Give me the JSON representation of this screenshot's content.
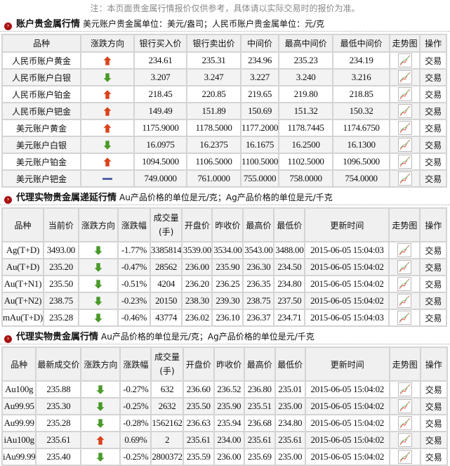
{
  "note": "注：本页面贵金属行情报价仅供参考，具体请以实际交易时的报价为准。",
  "colors": {
    "up": "#d9441c",
    "down": "#4a9a2a",
    "flat": "#5566aa",
    "accent": "#a11a1a"
  },
  "sections": [
    {
      "title": "账户贵金属行情",
      "unit": "美元账户贵金属单位：美元/盎司；人民币账户贵金属单位：元/克",
      "headers": [
        "品种",
        "涨跌方向",
        "银行买入价",
        "银行卖出价",
        "中间价",
        "最高中间价",
        "最低中间价",
        "走势图",
        "操作"
      ],
      "rows": [
        {
          "name": "人民币账户黄金",
          "dir": "up",
          "vals": [
            "234.61",
            "235.31",
            "234.96",
            "235.23",
            "234.19"
          ],
          "action": "交易"
        },
        {
          "name": "人民币账户白银",
          "dir": "down",
          "vals": [
            "3.207",
            "3.247",
            "3.227",
            "3.240",
            "3.216"
          ],
          "action": "交易"
        },
        {
          "name": "人民币账户铂金",
          "dir": "up",
          "vals": [
            "218.45",
            "220.85",
            "219.65",
            "219.80",
            "218.85"
          ],
          "action": "交易"
        },
        {
          "name": "人民币账户钯金",
          "dir": "up",
          "vals": [
            "149.49",
            "151.89",
            "150.69",
            "151.32",
            "150.32"
          ],
          "action": "交易"
        },
        {
          "name": "美元账户黄金",
          "dir": "up",
          "vals": [
            "1175.9000",
            "1178.5000",
            "1177.2000",
            "1178.7445",
            "1174.6750"
          ],
          "action": "交易"
        },
        {
          "name": "美元账户白银",
          "dir": "down",
          "vals": [
            "16.0975",
            "16.2375",
            "16.1675",
            "16.2500",
            "16.1300"
          ],
          "action": "交易"
        },
        {
          "name": "美元账户铂金",
          "dir": "up",
          "vals": [
            "1094.5000",
            "1106.5000",
            "1100.5000",
            "1102.5000",
            "1096.5000"
          ],
          "action": "交易"
        },
        {
          "name": "美元账户钯金",
          "dir": "flat",
          "vals": [
            "749.0000",
            "761.0000",
            "755.0000",
            "758.0000",
            "754.0000"
          ],
          "action": "交易"
        }
      ]
    },
    {
      "title": "代理实物贵金属递延行情",
      "unit": "Au产品价格的单位是元/克；Ag产品价格的单位是元/千克",
      "headers": [
        "品种",
        "当前价",
        "涨跌方向",
        "涨跌幅",
        "成交量(手)",
        "开盘价",
        "昨收价",
        "最高价",
        "最低价",
        "更新时间",
        "走势图",
        "操作"
      ],
      "rows": [
        {
          "name": "Ag(T+D)",
          "price": "3493.00",
          "dir": "down",
          "vals": [
            "-1.77%",
            "3385814",
            "3539.00",
            "3534.00",
            "3543.00",
            "3488.00",
            "2015-06-05 15:04:03"
          ],
          "action": "交易"
        },
        {
          "name": "Au(T+D)",
          "price": "235.20",
          "dir": "down",
          "vals": [
            "-0.47%",
            "28562",
            "236.00",
            "235.90",
            "236.30",
            "234.50",
            "2015-06-05 15:04:02"
          ],
          "action": "交易"
        },
        {
          "name": "Au(T+N1)",
          "price": "235.50",
          "dir": "down",
          "vals": [
            "-0.51%",
            "4204",
            "236.20",
            "236.25",
            "236.35",
            "234.80",
            "2015-06-05 15:04:02"
          ],
          "action": "交易"
        },
        {
          "name": "Au(T+N2)",
          "price": "238.75",
          "dir": "down",
          "vals": [
            "-0.23%",
            "20150",
            "238.30",
            "239.30",
            "238.75",
            "237.50",
            "2015-06-05 15:04:02"
          ],
          "action": "交易"
        },
        {
          "name": "mAu(T+D)",
          "price": "235.28",
          "dir": "down",
          "vals": [
            "-0.46%",
            "43774",
            "236.02",
            "236.10",
            "236.37",
            "234.71",
            "2015-06-05 15:04:03"
          ],
          "action": "交易"
        }
      ]
    },
    {
      "title": "代理实物贵金属行情",
      "unit": "Au产品价格的单位是元/克；Ag产品价格的单位是元/千克",
      "headers": [
        "品种",
        "最新成交价",
        "涨跌方向",
        "涨跌幅",
        "成交量(手)",
        "开盘价",
        "昨收价",
        "最高价",
        "最低价",
        "更新时间",
        "走势图",
        "操作"
      ],
      "rows": [
        {
          "name": "Au100g",
          "price": "235.88",
          "dir": "down",
          "vals": [
            "-0.27%",
            "632",
            "236.60",
            "236.52",
            "236.80",
            "235.01",
            "2015-06-05 15:04:02"
          ],
          "action": "交易"
        },
        {
          "name": "Au99.95",
          "price": "235.30",
          "dir": "down",
          "vals": [
            "-0.25%",
            "2632",
            "235.50",
            "235.90",
            "235.51",
            "235.00",
            "2015-06-05 15:04:02"
          ],
          "action": "交易"
        },
        {
          "name": "Au99.99",
          "price": "235.28",
          "dir": "down",
          "vals": [
            "-0.28%",
            "1562162",
            "236.63",
            "235.94",
            "236.68",
            "234.80",
            "2015-06-05 15:04:02"
          ],
          "action": "交易"
        },
        {
          "name": "iAu100g",
          "price": "235.61",
          "dir": "up",
          "vals": [
            "0.69%",
            "2",
            "235.61",
            "234.00",
            "235.61",
            "235.61",
            "2015-06-05 15:04:02"
          ],
          "action": "交易"
        },
        {
          "name": "iAu99.99",
          "price": "235.40",
          "dir": "down",
          "vals": [
            "-0.25%",
            "2800372",
            "235.59",
            "236.00",
            "235.69",
            "235.00",
            "2015-06-05 15:04:02"
          ],
          "action": "交易"
        }
      ]
    }
  ]
}
